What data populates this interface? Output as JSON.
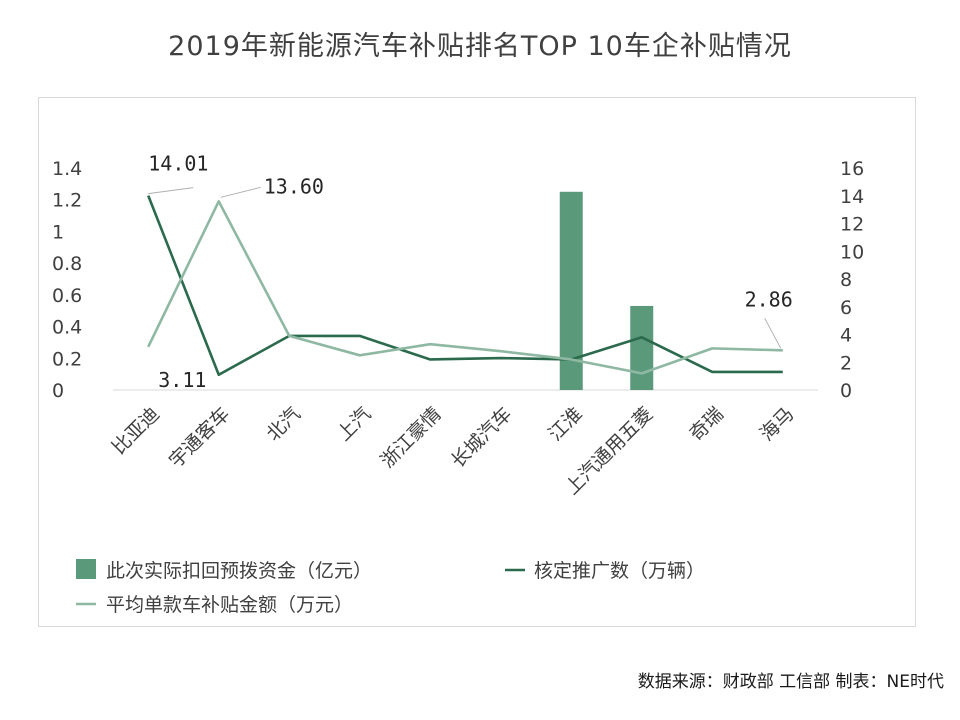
{
  "title": "2019年新能源汽车补贴排名TOP 10车企补贴情况",
  "source_text": "数据来源：财政部 工信部 制表：NE时代",
  "chart_data": {
    "type": "bar",
    "categories": [
      "比亚迪",
      "宇通客车",
      "北汽",
      "上汽",
      "浙江豪情",
      "长城汽车",
      "江淮",
      "上汽通用五菱",
      "奇瑞",
      "海马"
    ],
    "y_left": {
      "ticks": [
        "0",
        "0.2",
        "0.4",
        "0.6",
        "0.8",
        "1",
        "1.2",
        "1.4"
      ],
      "lim": [
        0,
        1.4
      ]
    },
    "y_right": {
      "ticks": [
        "0",
        "2",
        "4",
        "6",
        "8",
        "10",
        "12",
        "14",
        "16"
      ],
      "lim": [
        0,
        16
      ]
    },
    "series": [
      {
        "name": "此次实际扣回预拨资金（亿元）",
        "type": "bar",
        "axis": "left",
        "color": "#5a9a7a",
        "values": [
          null,
          null,
          null,
          null,
          null,
          null,
          1.25,
          0.53,
          null,
          null
        ]
      },
      {
        "name": "核定推广数（万辆）",
        "type": "line",
        "axis": "right",
        "color": "#2b6a4c",
        "values": [
          14.01,
          1.1,
          3.9,
          3.9,
          2.2,
          2.3,
          2.2,
          3.8,
          1.3,
          1.3
        ]
      },
      {
        "name": "平均单款车补贴金额（万元）",
        "type": "line",
        "axis": "right",
        "color": "#8fb8a3",
        "values": [
          3.11,
          13.6,
          3.9,
          2.5,
          3.3,
          2.8,
          2.2,
          1.2,
          3.0,
          2.86
        ]
      }
    ],
    "data_labels": [
      {
        "text": "14.01",
        "series": 1,
        "index": 0
      },
      {
        "text": "3.11",
        "series": 2,
        "index": 0
      },
      {
        "text": "13.60",
        "series": 2,
        "index": 1
      },
      {
        "text": "2.86",
        "series": 2,
        "index": 9
      }
    ],
    "legend": "bottom"
  }
}
